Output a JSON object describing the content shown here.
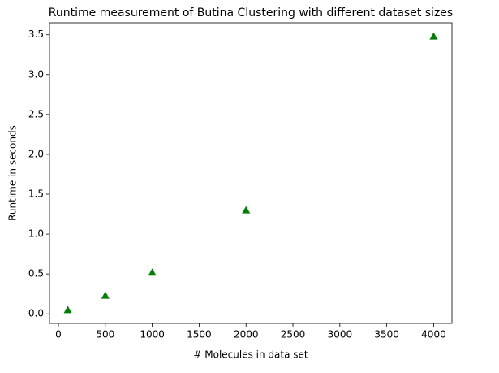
{
  "chart_data": {
    "type": "scatter",
    "title": "Runtime measurement of Butina Clustering with different dataset sizes",
    "x_label": "# Molecules in data set",
    "y_label": "Runtime in seconds",
    "marker": "triangle",
    "series": [
      {
        "color": "#008000",
        "x": [
          100,
          500,
          1000,
          2000,
          4000
        ],
        "values": [
          0.05,
          0.23,
          0.52,
          1.3,
          3.48
        ]
      }
    ],
    "xlim": [
      -95,
      4195
    ],
    "ylim": [
      -0.12,
      3.65
    ],
    "xticks": [
      0,
      500,
      1000,
      1500,
      2000,
      2500,
      3000,
      3500,
      4000
    ],
    "yticks": [
      {
        "value": 0,
        "label": "0.0"
      },
      {
        "value": 0.5,
        "label": "0.5"
      },
      {
        "value": 1,
        "label": "1.0"
      },
      {
        "value": 1.5,
        "label": "1.5"
      },
      {
        "value": 2,
        "label": "2.0"
      },
      {
        "value": 2.5,
        "label": "2.5"
      },
      {
        "value": 3,
        "label": "3.0"
      },
      {
        "value": 3.5,
        "label": "3.5"
      }
    ],
    "grid": false
  }
}
